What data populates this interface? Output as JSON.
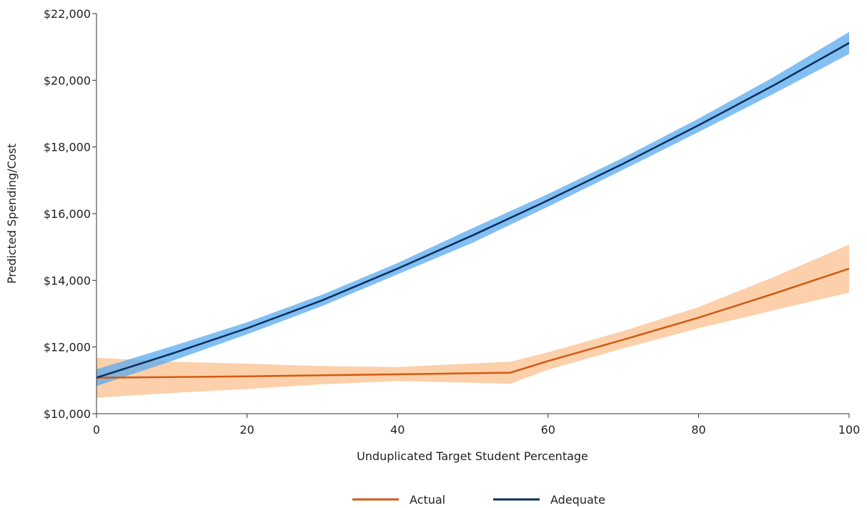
{
  "chart_data": {
    "type": "line",
    "title": "",
    "xlabel": "Unduplicated Target Student Percentage",
    "ylabel": "Predicted Spending/Cost",
    "xlim": [
      0,
      100
    ],
    "ylim": [
      10000,
      22000
    ],
    "x_ticks": [
      0,
      20,
      40,
      60,
      80,
      100
    ],
    "y_ticks": [
      10000,
      12000,
      14000,
      16000,
      18000,
      20000,
      22000
    ],
    "x_tick_labels": [
      "0",
      "20",
      "40",
      "60",
      "80",
      "100"
    ],
    "y_tick_labels": [
      "$10,000",
      "$12,000",
      "$14,000",
      "$16,000",
      "$18,000",
      "$20,000",
      "$22,000"
    ],
    "grid": false,
    "legend_position": "bottom",
    "series": [
      {
        "name": "Actual",
        "color": "#d35a12",
        "band_color": "#fbc08f",
        "x": [
          0,
          10,
          20,
          30,
          40,
          55,
          60,
          70,
          80,
          90,
          100
        ],
        "y": [
          11080,
          11100,
          11120,
          11150,
          11180,
          11230,
          11580,
          12220,
          12880,
          13600,
          14350
        ],
        "lower": [
          10480,
          10620,
          10740,
          10880,
          10980,
          10900,
          11320,
          11960,
          12560,
          13100,
          13630
        ],
        "upper": [
          11680,
          11560,
          11500,
          11430,
          11400,
          11560,
          11840,
          12480,
          13200,
          14100,
          15070
        ]
      },
      {
        "name": "Adequate",
        "color": "#0b2e5c",
        "band_color": "#58aaee",
        "x": [
          0,
          10,
          20,
          30,
          40,
          50,
          60,
          70,
          80,
          90,
          100
        ],
        "y": [
          11080,
          11800,
          12560,
          13400,
          14350,
          15350,
          16400,
          17500,
          18650,
          19850,
          21120
        ],
        "lower": [
          10830,
          11580,
          12380,
          13230,
          14180,
          15130,
          16210,
          17320,
          18450,
          19600,
          20790
        ],
        "upper": [
          11330,
          12020,
          12740,
          13570,
          14520,
          15570,
          16590,
          17680,
          18850,
          20100,
          21450
        ]
      }
    ]
  }
}
